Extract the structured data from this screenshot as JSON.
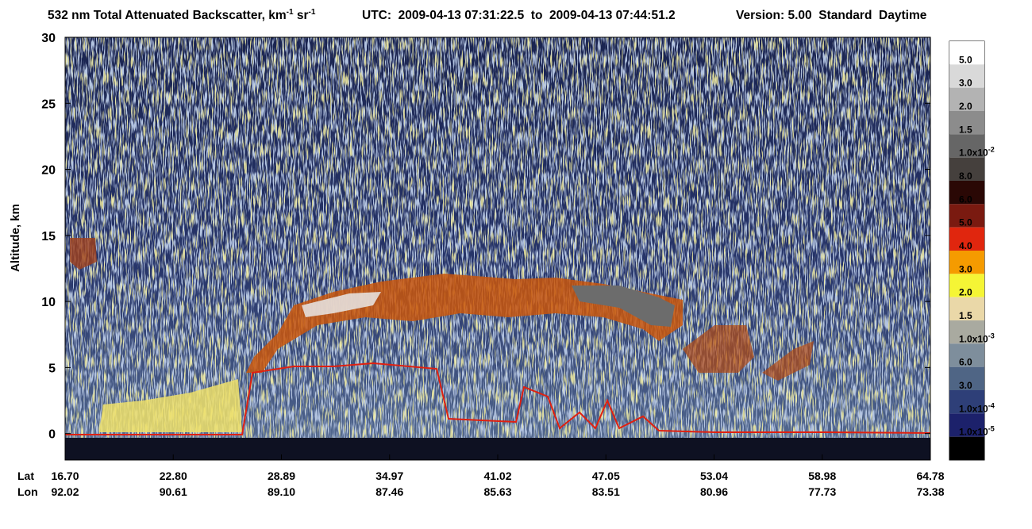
{
  "chart_data": {
    "type": "curtain",
    "title_parts": [
      {
        "text": "532 nm Total Attenuated Backscatter, km"
      },
      {
        "sup": "-1"
      },
      {
        "text": " sr"
      },
      {
        "sup": "-1"
      }
    ],
    "time_range": "UTC:  2009-04-13 07:31:22.5  to  2009-04-13 07:44:51.2",
    "version": "Version: 5.00  Standard  Daytime",
    "ylabel": "Altitude, km",
    "ylim": [
      -2,
      30
    ],
    "yticks": [
      0,
      5,
      10,
      15,
      20,
      25,
      30
    ],
    "x_row_labels": [
      "Lat",
      "Lon"
    ],
    "lat": [
      "16.70",
      "22.80",
      "28.89",
      "34.97",
      "41.02",
      "47.05",
      "53.04",
      "58.98",
      "64.78"
    ],
    "lon": [
      "92.02",
      "90.61",
      "89.10",
      "87.46",
      "85.63",
      "83.51",
      "80.96",
      "77.73",
      "73.38"
    ],
    "colorbar_colors": [
      "#ffffff",
      "#d9d9d9",
      "#b3b3b3",
      "#8c8c8c",
      "#666666",
      "#45403d",
      "#2a0805",
      "#7a1a10",
      "#e0260e",
      "#f59b00",
      "#f5f535",
      "#ead8a8",
      "#a9aaa0",
      "#7e8e9c",
      "#4f6585",
      "#2e3f78",
      "#1c216b",
      "#000000"
    ],
    "colorbar_labels": [
      {
        "text": "5.0"
      },
      {
        "text": "3.0"
      },
      {
        "text": "2.0"
      },
      {
        "text": "1.5"
      },
      {
        "text": "1.0x10",
        "sup": "-2"
      },
      {
        "text": "8.0"
      },
      {
        "text": "6.0"
      },
      {
        "text": "5.0"
      },
      {
        "text": "4.0"
      },
      {
        "text": "3.0"
      },
      {
        "text": "2.0"
      },
      {
        "text": "1.5"
      },
      {
        "text": "1.0x10",
        "sup": "-3"
      },
      {
        "text": "6.0"
      },
      {
        "text": "3.0"
      },
      {
        "text": "1.0x10",
        "sup": "-4"
      },
      {
        "text": "1.0x10",
        "sup": "-5"
      }
    ]
  }
}
